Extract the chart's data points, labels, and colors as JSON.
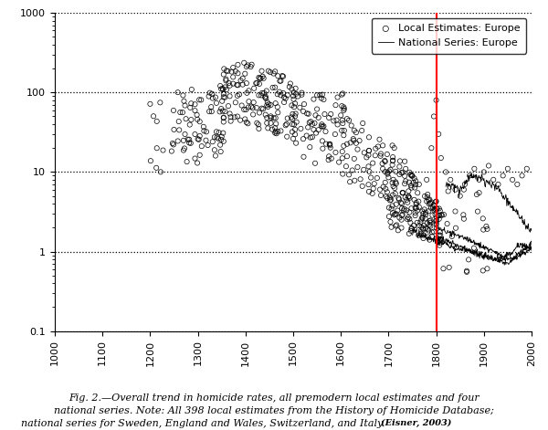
{
  "xlim": [
    1000,
    2000
  ],
  "ylim": [
    0.1,
    1000
  ],
  "red_line_x": 1800,
  "legend_entries": [
    "Local Estimates: Europe",
    "National Series: Europe"
  ],
  "background_color": "#ffffff",
  "scatter_edgecolor": "#000000",
  "scatter_size": 14,
  "line_color": "#000000",
  "red_line_color": "#ff0000",
  "caption_lines": [
    "Fig. 2.—Overall trend in homicide rates, all premodern local estimates and four",
    "national series. Note: All 398 local estimates from the History of Homicide Database;",
    "national series for Sweden, England and Wales, Switzerland, and Italy."
  ],
  "citation": "(Eisner, 2003)"
}
